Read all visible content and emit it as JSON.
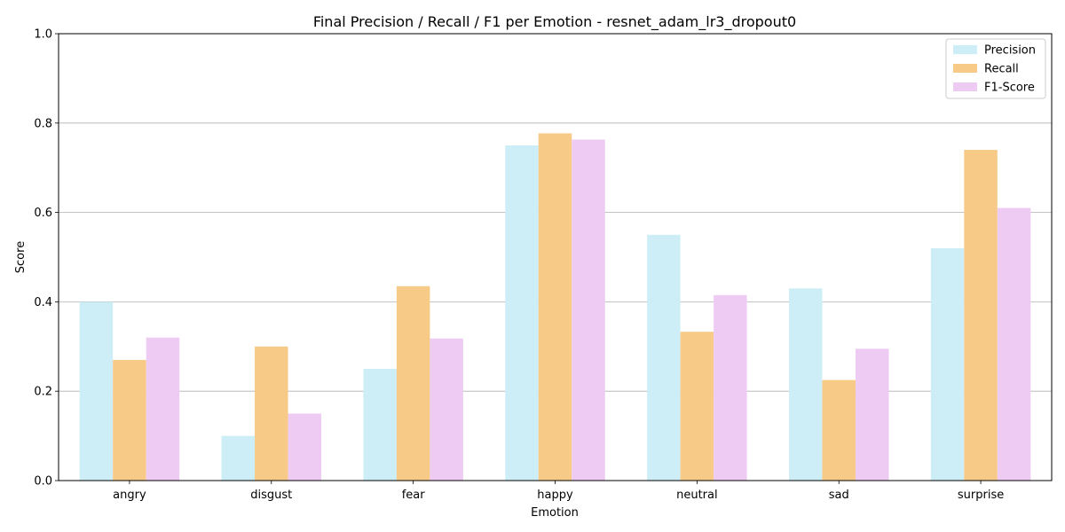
{
  "chart_data": {
    "type": "bar",
    "title": "Final Precision / Recall / F1 per Emotion - resnet_adam_lr3_dropout0",
    "xlabel": "Emotion",
    "ylabel": "Score",
    "ylim": [
      0,
      1.0
    ],
    "yticks": [
      "0.0",
      "0.2",
      "0.4",
      "0.6",
      "0.8",
      "1.0"
    ],
    "grid": "y",
    "legend_position": "top-right",
    "categories": [
      "angry",
      "disgust",
      "fear",
      "happy",
      "neutral",
      "sad",
      "surprise"
    ],
    "series": [
      {
        "name": "Precision",
        "color": "#cdeef7",
        "values": [
          0.4,
          0.1,
          0.25,
          0.75,
          0.55,
          0.43,
          0.52
        ]
      },
      {
        "name": "Recall",
        "color": "#f8ca88",
        "values": [
          0.27,
          0.3,
          0.435,
          0.777,
          0.333,
          0.225,
          0.74
        ]
      },
      {
        "name": "F1-Score",
        "color": "#eecbf2",
        "values": [
          0.32,
          0.15,
          0.318,
          0.763,
          0.415,
          0.295,
          0.61
        ]
      }
    ]
  }
}
